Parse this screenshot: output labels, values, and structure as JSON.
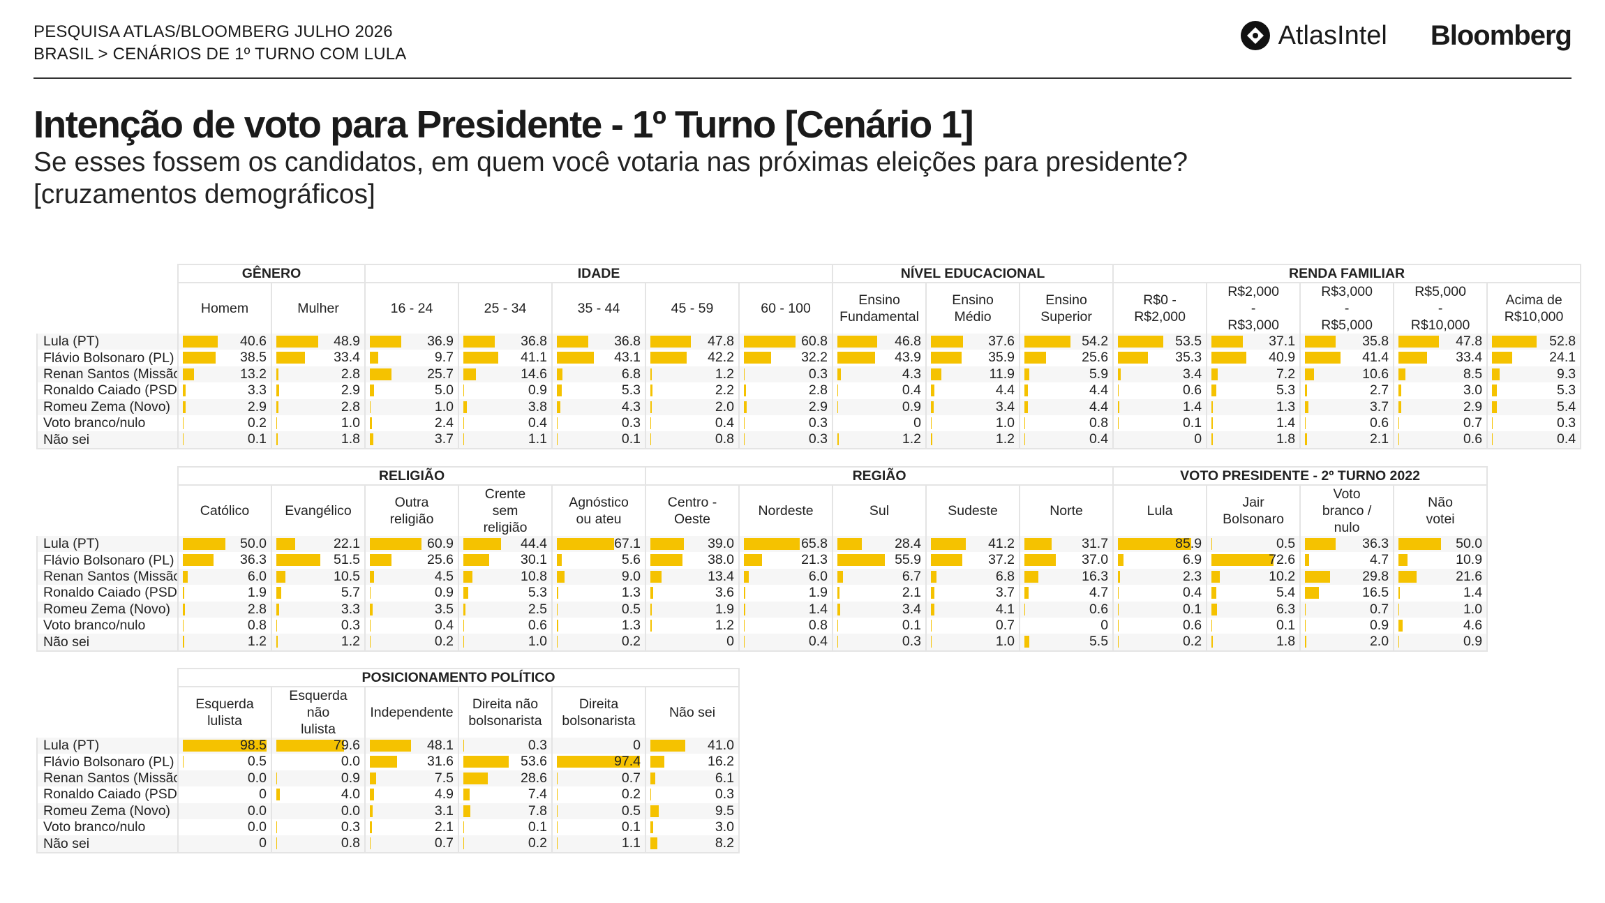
{
  "header": {
    "line1": "PESQUISA ATLAS/BLOOMBERG JULHO 2026",
    "line2": "BRASIL > CENÁRIOS DE 1º TURNO COM LULA",
    "atlas_logo": "AtlasIntel",
    "bloomberg_logo": "Bloomberg"
  },
  "title": "Intenção de voto para Presidente - 1º Turno [Cenário 1]",
  "subtitle_line1": "Se esses fossem os candidatos, em quem você votaria nas próximas eleições para presidente?",
  "subtitle_line2": "[cruzamentos demográficos]",
  "colors": {
    "bar": "#f5c200",
    "border": "#e4e4e4",
    "stripe": "#f6f6f6"
  },
  "chart_data": {
    "type": "table",
    "row_labels": [
      "Lula (PT)",
      "Flávio Bolsonaro (PL)",
      "Renan Santos (Missão)",
      "Ronaldo Caiado (PSD)",
      "Romeu Zema (Novo)",
      "Voto branco/nulo",
      "Não sei"
    ],
    "panels": [
      {
        "groups": [
          {
            "name": "GÊNERO",
            "columns": [
              {
                "label": "Homem",
                "values": [
                  "40.6",
                  "38.5",
                  "13.2",
                  "3.3",
                  "2.9",
                  "0.2",
                  "0.1"
                ]
              },
              {
                "label": "Mulher",
                "values": [
                  "48.9",
                  "33.4",
                  "2.8",
                  "2.9",
                  "2.8",
                  "1.0",
                  "1.8"
                ]
              }
            ]
          },
          {
            "name": "IDADE",
            "columns": [
              {
                "label": "16 - 24",
                "values": [
                  "36.9",
                  "9.7",
                  "25.7",
                  "5.0",
                  "1.0",
                  "2.4",
                  "3.7"
                ]
              },
              {
                "label": "25 - 34",
                "values": [
                  "36.8",
                  "41.1",
                  "14.6",
                  "0.9",
                  "3.8",
                  "0.4",
                  "1.1"
                ]
              },
              {
                "label": "35 - 44",
                "values": [
                  "36.8",
                  "43.1",
                  "6.8",
                  "5.3",
                  "4.3",
                  "0.3",
                  "0.1"
                ]
              },
              {
                "label": "45 - 59",
                "values": [
                  "47.8",
                  "42.2",
                  "1.2",
                  "2.2",
                  "2.0",
                  "0.4",
                  "0.8"
                ]
              },
              {
                "label": "60 - 100",
                "values": [
                  "60.8",
                  "32.2",
                  "0.3",
                  "2.8",
                  "2.9",
                  "0.3",
                  "0.3"
                ]
              }
            ]
          },
          {
            "name": "NÍVEL EDUCACIONAL",
            "columns": [
              {
                "label": "Ensino\nFundamental",
                "values": [
                  "46.8",
                  "43.9",
                  "4.3",
                  "0.4",
                  "0.9",
                  "0",
                  "1.2"
                ]
              },
              {
                "label": "Ensino\nMédio",
                "values": [
                  "37.6",
                  "35.9",
                  "11.9",
                  "4.4",
                  "3.4",
                  "1.0",
                  "1.2"
                ]
              },
              {
                "label": "Ensino\nSuperior",
                "values": [
                  "54.2",
                  "25.6",
                  "5.9",
                  "4.4",
                  "4.4",
                  "0.8",
                  "0.4"
                ]
              }
            ]
          },
          {
            "name": "RENDA FAMILIAR",
            "columns": [
              {
                "label": "R$0 -\nR$2,000",
                "values": [
                  "53.5",
                  "35.3",
                  "3.4",
                  "0.6",
                  "1.4",
                  "0.1",
                  "0"
                ]
              },
              {
                "label": "R$2,000\n-\nR$3,000",
                "values": [
                  "37.1",
                  "40.9",
                  "7.2",
                  "5.3",
                  "1.3",
                  "1.4",
                  "1.8"
                ]
              },
              {
                "label": "R$3,000\n-\nR$5,000",
                "values": [
                  "35.8",
                  "41.4",
                  "10.6",
                  "2.7",
                  "3.7",
                  "0.6",
                  "2.1"
                ]
              },
              {
                "label": "R$5,000\n-\nR$10,000",
                "values": [
                  "47.8",
                  "33.4",
                  "8.5",
                  "3.0",
                  "2.9",
                  "0.7",
                  "0.6"
                ]
              },
              {
                "label": "Acima de\nR$10,000",
                "values": [
                  "52.8",
                  "24.1",
                  "9.3",
                  "5.3",
                  "5.4",
                  "0.3",
                  "0.4"
                ]
              }
            ]
          }
        ]
      },
      {
        "groups": [
          {
            "name": "RELIGIÃO",
            "columns": [
              {
                "label": "Católico",
                "values": [
                  "50.0",
                  "36.3",
                  "6.0",
                  "1.9",
                  "2.8",
                  "0.8",
                  "1.2"
                ]
              },
              {
                "label": "Evangélico",
                "values": [
                  "22.1",
                  "51.5",
                  "10.5",
                  "5.7",
                  "3.3",
                  "0.3",
                  "1.2"
                ]
              },
              {
                "label": "Outra\nreligião",
                "values": [
                  "60.9",
                  "25.6",
                  "4.5",
                  "0.9",
                  "3.5",
                  "0.4",
                  "0.2"
                ]
              },
              {
                "label": "Crente\nsem\nreligião",
                "values": [
                  "44.4",
                  "30.1",
                  "10.8",
                  "5.3",
                  "2.5",
                  "0.6",
                  "1.0"
                ]
              },
              {
                "label": "Agnóstico\nou ateu",
                "values": [
                  "67.1",
                  "5.6",
                  "9.0",
                  "1.3",
                  "0.5",
                  "1.3",
                  "0.2"
                ]
              }
            ]
          },
          {
            "name": "REGIÃO",
            "columns": [
              {
                "label": "Centro -\nOeste",
                "values": [
                  "39.0",
                  "38.0",
                  "13.4",
                  "3.6",
                  "1.9",
                  "1.2",
                  "0"
                ]
              },
              {
                "label": "Nordeste",
                "values": [
                  "65.8",
                  "21.3",
                  "6.0",
                  "1.9",
                  "1.4",
                  "0.8",
                  "0.4"
                ]
              },
              {
                "label": "Sul",
                "values": [
                  "28.4",
                  "55.9",
                  "6.7",
                  "2.1",
                  "3.4",
                  "0.1",
                  "0.3"
                ]
              },
              {
                "label": "Sudeste",
                "values": [
                  "41.2",
                  "37.2",
                  "6.8",
                  "3.7",
                  "4.1",
                  "0.7",
                  "1.0"
                ]
              },
              {
                "label": "Norte",
                "values": [
                  "31.7",
                  "37.0",
                  "16.3",
                  "4.7",
                  "0.6",
                  "0",
                  "5.5"
                ]
              }
            ]
          },
          {
            "name": "VOTO PRESIDENTE - 2º TURNO 2022",
            "columns": [
              {
                "label": "Lula",
                "values": [
                  "85.9",
                  "6.9",
                  "2.3",
                  "0.4",
                  "0.1",
                  "0.6",
                  "0.2"
                ]
              },
              {
                "label": "Jair\nBolsonaro",
                "values": [
                  "0.5",
                  "72.6",
                  "10.2",
                  "5.4",
                  "6.3",
                  "0.1",
                  "1.8"
                ]
              },
              {
                "label": "Voto\nbranco /\nnulo",
                "values": [
                  "36.3",
                  "4.7",
                  "29.8",
                  "16.5",
                  "0.7",
                  "0.9",
                  "2.0"
                ]
              },
              {
                "label": "Não\nvotei",
                "values": [
                  "50.0",
                  "10.9",
                  "21.6",
                  "1.4",
                  "1.0",
                  "4.6",
                  "0.9"
                ]
              }
            ]
          }
        ]
      },
      {
        "groups": [
          {
            "name": "POSICIONAMENTO POLÍTICO",
            "columns": [
              {
                "label": "Esquerda\nlulista",
                "values": [
                  "98.5",
                  "0.5",
                  "0.0",
                  "0",
                  "0.0",
                  "0.0",
                  "0"
                ]
              },
              {
                "label": "Esquerda\nnão\nlulista",
                "values": [
                  "79.6",
                  "0.0",
                  "0.9",
                  "4.0",
                  "0.0",
                  "0.3",
                  "0.8"
                ]
              },
              {
                "label": "Independente",
                "values": [
                  "48.1",
                  "31.6",
                  "7.5",
                  "4.9",
                  "3.1",
                  "2.1",
                  "0.7"
                ]
              },
              {
                "label": "Direita não\nbolsonarista",
                "values": [
                  "0.3",
                  "53.6",
                  "28.6",
                  "7.4",
                  "7.8",
                  "0.1",
                  "0.2"
                ]
              },
              {
                "label": "Direita\nbolsonarista",
                "values": [
                  "0",
                  "97.4",
                  "0.7",
                  "0.2",
                  "0.5",
                  "0.1",
                  "1.1"
                ]
              },
              {
                "label": "Não sei",
                "values": [
                  "41.0",
                  "16.2",
                  "6.1",
                  "0.3",
                  "9.5",
                  "3.0",
                  "8.2"
                ]
              }
            ]
          }
        ]
      }
    ]
  }
}
